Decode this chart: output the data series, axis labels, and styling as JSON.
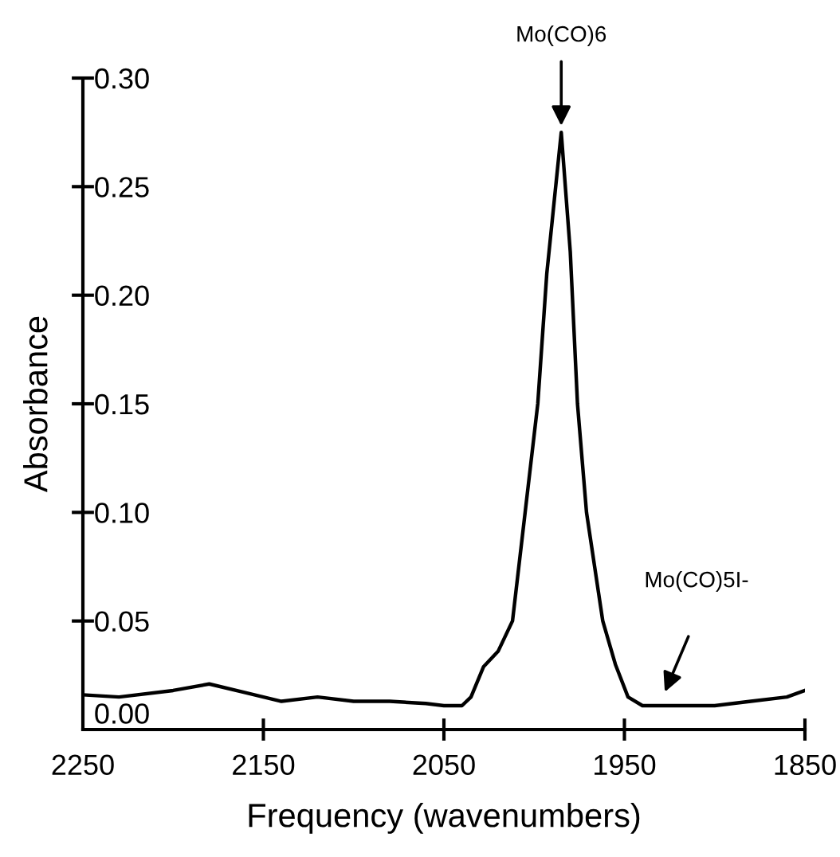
{
  "chart_data": {
    "type": "line",
    "xlabel": "Frequency (wavenumbers)",
    "ylabel": "Absorbance",
    "x": [
      2250,
      2230,
      2200,
      2180,
      2160,
      2140,
      2120,
      2100,
      2080,
      2060,
      2050,
      2040,
      2035,
      2028,
      2020,
      2012,
      2005,
      1998,
      1993,
      1985,
      1980,
      1976,
      1971,
      1962,
      1955,
      1948,
      1940,
      1930,
      1900,
      1880,
      1860,
      1850
    ],
    "series": [
      {
        "color": "#000000",
        "values": [
          0.016,
          0.015,
          0.018,
          0.021,
          0.017,
          0.013,
          0.015,
          0.013,
          0.013,
          0.012,
          0.011,
          0.011,
          0.015,
          0.029,
          0.036,
          0.05,
          0.1,
          0.15,
          0.21,
          0.275,
          0.22,
          0.15,
          0.1,
          0.05,
          0.03,
          0.015,
          0.011,
          0.011,
          0.011,
          0.013,
          0.015,
          0.018
        ]
      }
    ],
    "xlim": [
      2250,
      1850
    ],
    "xticks": [
      2250,
      2150,
      2050,
      1950,
      1850
    ],
    "ylim": [
      0,
      0.3
    ],
    "yticks": [
      {
        "value": 0,
        "label": "0.00"
      },
      {
        "value": 0.05,
        "label": "0.05"
      },
      {
        "value": 0.1,
        "label": "0.10"
      },
      {
        "value": 0.15,
        "label": "0.15"
      },
      {
        "value": 0.2,
        "label": "0.20"
      },
      {
        "value": 0.25,
        "label": "0.25"
      },
      {
        "value": 0.3,
        "label": "0.30"
      }
    ],
    "grid": false,
    "legend": false,
    "marker": "none",
    "line_style": "solid",
    "annotations": [
      {
        "text": "Mo(CO)6",
        "x": 1985,
        "y": 0.278
      },
      "Mo(CO)5I-"
    ]
  }
}
